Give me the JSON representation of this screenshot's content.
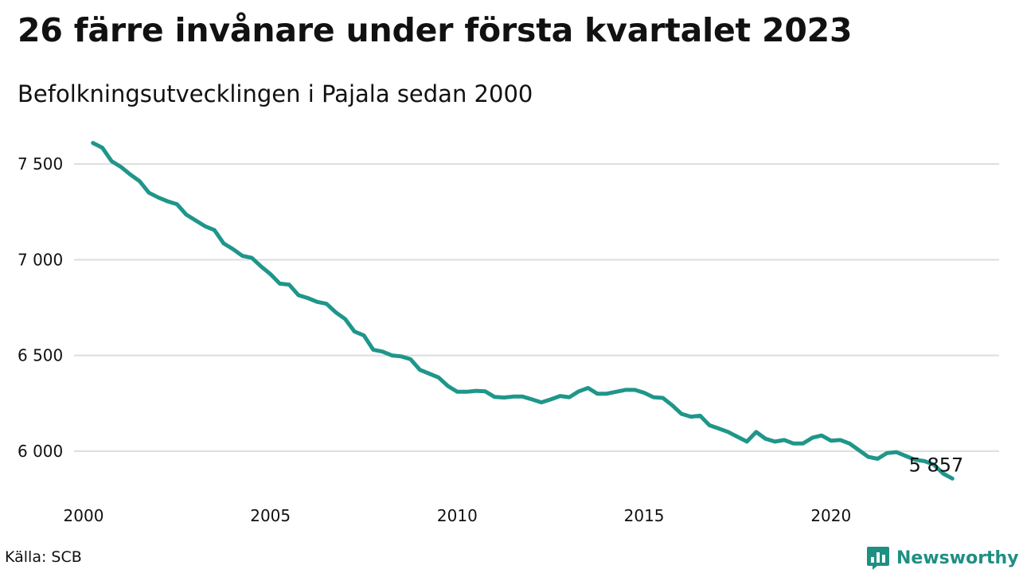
{
  "title": "26 färre invånare under första kvartalet 2023",
  "subtitle": "Befolkningsutvecklingen i Pajala sedan 2000",
  "source": "Källa: SCB",
  "brand": {
    "name": "Newsworthy",
    "color": "#1f8f83",
    "icon": "bar-chart-speech-icon"
  },
  "chart_data": {
    "type": "line",
    "title": "26 färre invånare under första kvartalet 2023",
    "subtitle": "Befolkningsutvecklingen i Pajala sedan 2000",
    "xlabel": "",
    "ylabel": "",
    "x_unit": "year (quarterly observations)",
    "xlim": [
      2000,
      2024.5
    ],
    "ylim": [
      5800,
      7650
    ],
    "grid": true,
    "line_color": "#1f968a",
    "grid_color": "#dddddd",
    "y_ticks": [
      {
        "value": 6000,
        "label": "6 000"
      },
      {
        "value": 6500,
        "label": "6 500"
      },
      {
        "value": 7000,
        "label": "7 000"
      },
      {
        "value": 7500,
        "label": "7 500"
      }
    ],
    "x_ticks": [
      {
        "value": 2000,
        "label": "2000"
      },
      {
        "value": 2005,
        "label": "2005"
      },
      {
        "value": 2010,
        "label": "2010"
      },
      {
        "value": 2015,
        "label": "2015"
      },
      {
        "value": 2020,
        "label": "2020"
      }
    ],
    "end_label": "5 857",
    "series": [
      {
        "x": [
          2000.25,
          2000.5,
          2000.75,
          2001.0,
          2001.25,
          2001.5,
          2001.75,
          2002.0,
          2002.25,
          2002.5,
          2002.75,
          2003.0,
          2003.25,
          2003.5,
          2003.75,
          2004.0,
          2004.25,
          2004.5,
          2004.75,
          2005.0,
          2005.25,
          2005.5,
          2005.75,
          2006.0,
          2006.25,
          2006.5,
          2006.75,
          2007.0,
          2007.25,
          2007.5,
          2007.75,
          2008.0,
          2008.25,
          2008.5,
          2008.75,
          2009.0,
          2009.25,
          2009.5,
          2009.75,
          2010.0,
          2010.25,
          2010.5,
          2010.75,
          2011.0,
          2011.25,
          2011.5,
          2011.75,
          2012.0,
          2012.25,
          2012.5,
          2012.75,
          2013.0,
          2013.25,
          2013.5,
          2013.75,
          2014.0,
          2014.25,
          2014.5,
          2014.75,
          2015.0,
          2015.25,
          2015.5,
          2015.75,
          2016.0,
          2016.25,
          2016.5,
          2016.75,
          2017.0,
          2017.25,
          2017.5,
          2017.75,
          2018.0,
          2018.25,
          2018.5,
          2018.75,
          2019.0,
          2019.25,
          2019.5,
          2019.75,
          2020.0,
          2020.25,
          2020.5,
          2020.75,
          2021.0,
          2021.25,
          2021.5,
          2021.75,
          2022.0,
          2022.25,
          2022.5,
          2022.75,
          2023.0,
          2023.25
        ],
        "values": [
          7610,
          7585,
          7515,
          7485,
          7445,
          7410,
          7350,
          7325,
          7305,
          7290,
          7235,
          7205,
          7175,
          7155,
          7085,
          7055,
          7020,
          7010,
          6965,
          6925,
          6875,
          6870,
          6815,
          6800,
          6780,
          6770,
          6725,
          6690,
          6625,
          6605,
          6530,
          6520,
          6500,
          6495,
          6480,
          6425,
          6405,
          6385,
          6340,
          6310,
          6310,
          6315,
          6312,
          6283,
          6280,
          6285,
          6285,
          6270,
          6255,
          6270,
          6288,
          6282,
          6312,
          6330,
          6300,
          6300,
          6310,
          6320,
          6320,
          6305,
          6282,
          6278,
          6240,
          6195,
          6180,
          6185,
          6135,
          6118,
          6100,
          6075,
          6050,
          6100,
          6065,
          6050,
          6058,
          6040,
          6040,
          6070,
          6082,
          6055,
          6058,
          6040,
          6005,
          5970,
          5960,
          5990,
          5995,
          5975,
          5955,
          5948,
          5930,
          5883,
          5857
        ]
      }
    ]
  }
}
